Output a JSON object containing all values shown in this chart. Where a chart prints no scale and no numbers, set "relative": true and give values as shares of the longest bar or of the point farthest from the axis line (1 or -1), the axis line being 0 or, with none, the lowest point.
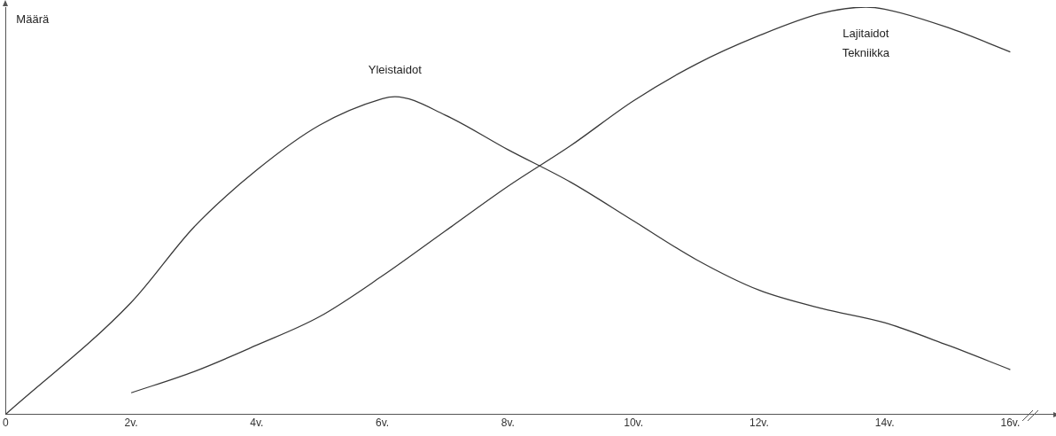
{
  "chart_data": {
    "type": "line",
    "ylabel": "Määrä",
    "relative": true,
    "marker": "none",
    "legend": false,
    "xlim": [
      0,
      16.7
    ],
    "xticks": [
      0,
      {
        "value": 2,
        "label": "2v."
      },
      {
        "value": 4,
        "label": "4v."
      },
      {
        "value": 6,
        "label": "6v."
      },
      {
        "value": 8,
        "label": "8v."
      },
      {
        "value": 10,
        "label": "10v."
      },
      {
        "value": 12,
        "label": "12v."
      },
      {
        "value": 14,
        "label": "14v."
      },
      {
        "value": 16,
        "label": "16v."
      }
    ],
    "series": [
      {
        "name": "Yleistaidot",
        "color": "#3a3a3a",
        "x": [
          0,
          2,
          3,
          4,
          5,
          6,
          6.2,
          7,
          8,
          9,
          10,
          11,
          12,
          13,
          14,
          15,
          16
        ],
        "values": [
          0,
          0.275,
          0.46,
          0.6,
          0.71,
          0.775,
          0.78,
          0.735,
          0.65,
          0.57,
          0.475,
          0.38,
          0.305,
          0.26,
          0.225,
          0.17,
          0.11
        ]
      },
      {
        "name": "Lajitaidot\nTekniikka",
        "color": "#3a3a3a",
        "x": [
          2,
          3,
          4,
          5,
          6,
          7,
          8,
          9,
          10,
          11,
          12,
          13,
          13.7,
          14,
          15,
          16
        ],
        "values": [
          0.053,
          0.105,
          0.17,
          0.24,
          0.34,
          0.45,
          0.56,
          0.66,
          0.77,
          0.86,
          0.93,
          0.985,
          1,
          0.995,
          0.95,
          0.89
        ]
      }
    ]
  }
}
